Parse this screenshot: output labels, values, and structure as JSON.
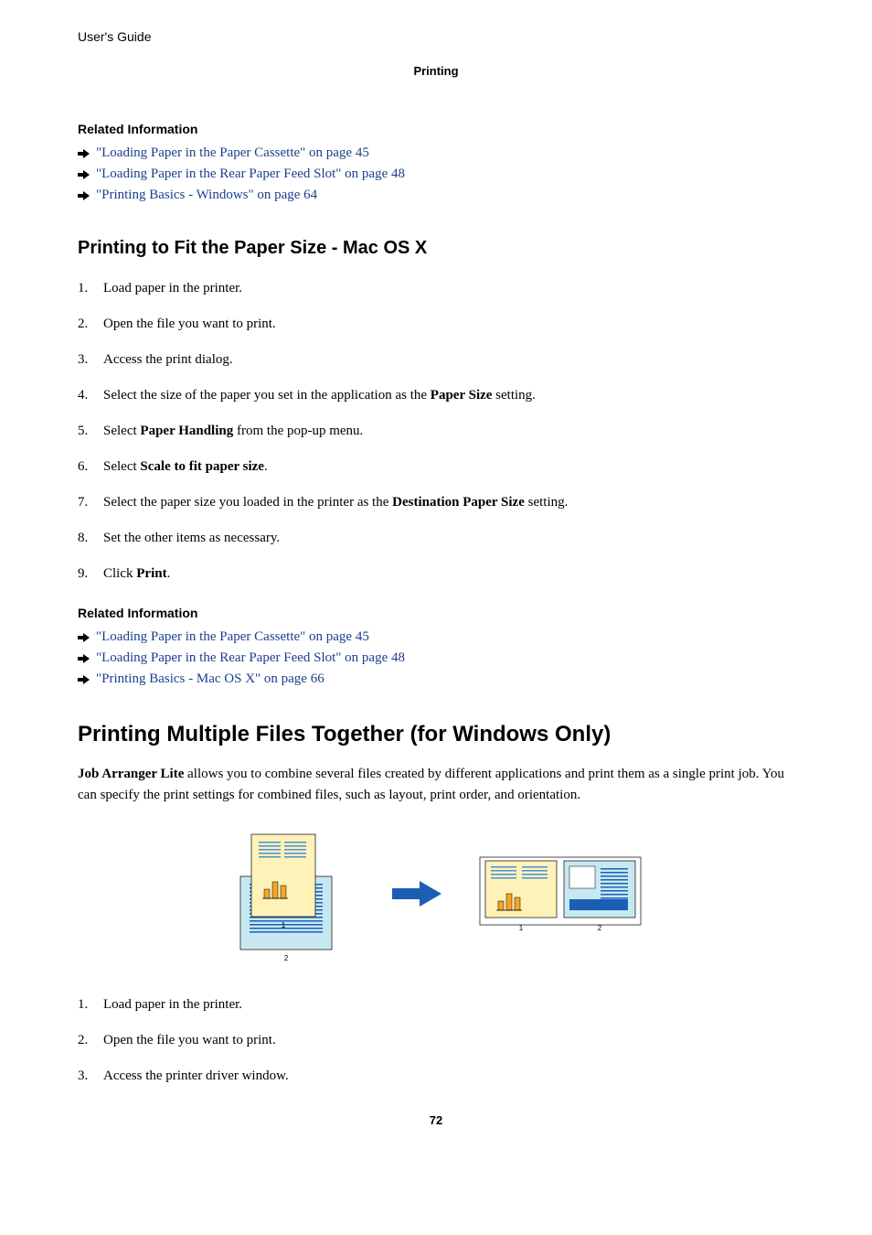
{
  "header": {
    "doc_title": "User's Guide",
    "section": "Printing"
  },
  "related1": {
    "heading": "Related Information",
    "links": [
      "\"Loading Paper in the Paper Cassette\" on page 45",
      "\"Loading Paper in the Rear Paper Feed Slot\" on page 48",
      "\"Printing Basics - Windows\" on page 64"
    ]
  },
  "mac_section": {
    "title": "Printing to Fit the Paper Size - Mac OS X",
    "steps": [
      {
        "pre": "Load paper in the printer."
      },
      {
        "pre": "Open the file you want to print."
      },
      {
        "pre": "Access the print dialog."
      },
      {
        "pre": "Select the size of the paper you set in the application as the ",
        "bold": "Paper Size",
        "post": " setting."
      },
      {
        "pre": "Select ",
        "bold": "Paper Handling",
        "post": " from the pop-up menu."
      },
      {
        "pre": "Select ",
        "bold": "Scale to fit paper size",
        "post": "."
      },
      {
        "pre": "Select the paper size you loaded in the printer as the ",
        "bold": "Destination Paper Size",
        "post": " setting."
      },
      {
        "pre": "Set the other items as necessary."
      },
      {
        "pre": "Click ",
        "bold": "Print",
        "post": "."
      }
    ]
  },
  "related2": {
    "heading": "Related Information",
    "links": [
      "\"Loading Paper in the Paper Cassette\" on page 45",
      "\"Loading Paper in the Rear Paper Feed Slot\" on page 48",
      "\"Printing Basics - Mac OS X\" on page 66"
    ]
  },
  "multi_section": {
    "title": "Printing Multiple Files Together (for Windows Only)",
    "intro_bold": "Job Arranger Lite",
    "intro_rest": " allows you to combine several files created by different applications and print them as a single print job. You can specify the print settings for combined files, such as layout, print order, and orientation.",
    "steps": [
      "Load paper in the printer.",
      "Open the file you want to print.",
      "Access the printer driver window."
    ]
  },
  "page_number": "72",
  "colors": {
    "link": "#1a3f8b",
    "arrow": "#000000",
    "fig_blue_bg": "#c7e8f0",
    "fig_yellow": "#fff2b8",
    "fig_orange": "#f5a623",
    "fig_db": "#1a5fb4",
    "fig_lb": "#4a90d9",
    "fig_arrow": "#1a5fb4"
  }
}
